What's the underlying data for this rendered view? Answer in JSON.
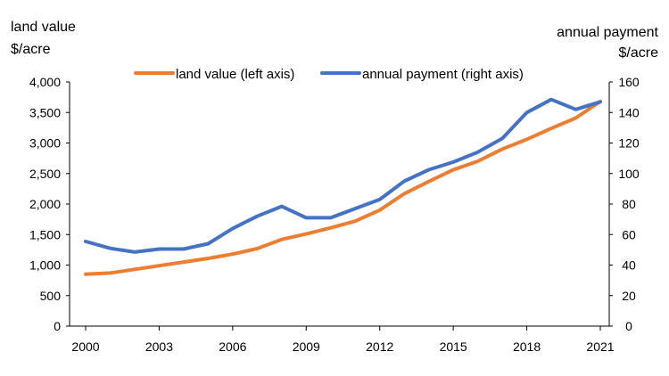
{
  "chart_data": {
    "type": "line",
    "title": "",
    "xlabel": "",
    "left_axis": {
      "label_line1": "land value",
      "label_line2": "$/acre",
      "range": [
        0,
        4000
      ],
      "ticks": [
        "0",
        "500",
        "1,000",
        "1,500",
        "2,000",
        "2,500",
        "3,000",
        "3,500",
        "4,000"
      ],
      "tick_values": [
        0,
        500,
        1000,
        1500,
        2000,
        2500,
        3000,
        3500,
        4000
      ]
    },
    "right_axis": {
      "label_line1": "annual payment",
      "label_line2": "$/acre",
      "range": [
        0,
        160
      ],
      "ticks": [
        "0",
        "20",
        "40",
        "60",
        "80",
        "100",
        "120",
        "140",
        "160"
      ],
      "tick_values": [
        0,
        20,
        40,
        60,
        80,
        100,
        120,
        140,
        160
      ]
    },
    "x": [
      2000,
      2001,
      2002,
      2003,
      2004,
      2005,
      2006,
      2007,
      2008,
      2009,
      2010,
      2011,
      2012,
      2013,
      2014,
      2015,
      2016,
      2017,
      2018,
      2019,
      2020,
      2021
    ],
    "x_ticks": [
      "2000",
      "2003",
      "2006",
      "2009",
      "2012",
      "2015",
      "2018",
      "2021"
    ],
    "x_tick_values": [
      2000,
      2003,
      2006,
      2009,
      2012,
      2015,
      2018,
      2021
    ],
    "series": [
      {
        "name": "land value (left axis)",
        "axis": "left",
        "color": "#ED7D31",
        "values": [
          850,
          870,
          930,
          990,
          1050,
          1110,
          1180,
          1270,
          1420,
          1510,
          1610,
          1720,
          1900,
          2170,
          2370,
          2560,
          2700,
          2900,
          3060,
          3240,
          3410,
          3680
        ]
      },
      {
        "name": "annual payment (right axis)",
        "axis": "right",
        "color": "#4472C4",
        "values": [
          55.5,
          51,
          48.5,
          50.5,
          50.5,
          54,
          64,
          72,
          78.5,
          71,
          71,
          77,
          83,
          95,
          102.5,
          107.5,
          114,
          123,
          140,
          148.5,
          142,
          147
        ]
      }
    ],
    "legend_position": "top-center"
  }
}
